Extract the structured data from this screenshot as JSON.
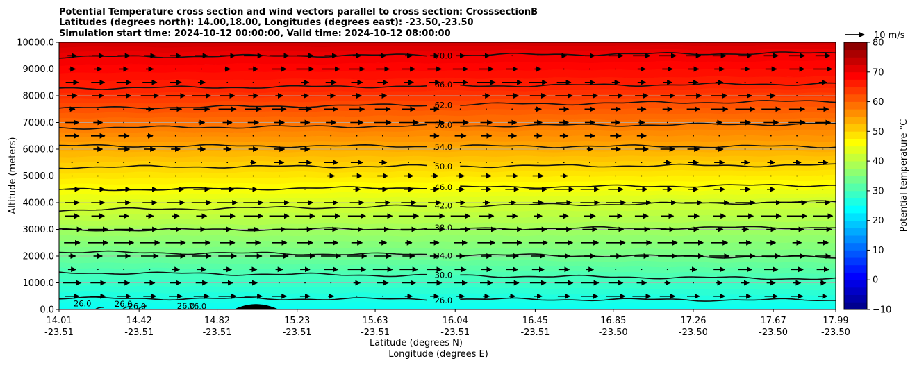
{
  "chart_data": {
    "type": "contour",
    "title_lines": [
      "Potential Temperature cross section and wind vectors parallel to cross section: CrosssectionB",
      "Latitudes (degrees north): 14.00,18.00, Longitudes (degrees east): -23.50,-23.50",
      "Simulation start time: 2024-10-12 00:00:00, Valid time: 2024-10-12 08:00:00"
    ],
    "xlabel_lines": [
      "Latitude (degrees N)",
      "Longitude (degrees E)"
    ],
    "ylabel": "Altitude (meters)",
    "x_ticks_lat": [
      "14.01",
      "14.42",
      "14.82",
      "15.23",
      "15.63",
      "16.04",
      "16.45",
      "16.85",
      "17.26",
      "17.67",
      "17.99"
    ],
    "x_ticks_lon": [
      "-23.51",
      "-23.51",
      "-23.51",
      "-23.51",
      "-23.51",
      "-23.51",
      "-23.51",
      "-23.50",
      "-23.50",
      "-23.50",
      "-23.50"
    ],
    "x_range": [
      14.01,
      17.99
    ],
    "y_ticks": [
      "0.0",
      "1000.0",
      "2000.0",
      "3000.0",
      "4000.0",
      "5000.0",
      "6000.0",
      "7000.0",
      "8000.0",
      "9000.0",
      "10000.0"
    ],
    "ylim": [
      0,
      10000
    ],
    "grid": "horizontal",
    "colorbar": {
      "label": "Potential temperature $^\\circ$C",
      "ticks": [
        "−10",
        "0",
        "10",
        "20",
        "30",
        "40",
        "50",
        "60",
        "70",
        "80"
      ],
      "range": [
        -10,
        80
      ],
      "step": 2.5,
      "colormap": "jet"
    },
    "wind_key_label": "10 m/s",
    "contours": [
      {
        "value": 26,
        "label": "26.0",
        "alt_left": 420,
        "alt_right": 350
      },
      {
        "value": 30,
        "label": "30.0",
        "alt_left": 1380,
        "alt_right": 1150
      },
      {
        "value": 34,
        "label": "34.0",
        "alt_left": 2150,
        "alt_right": 1950
      },
      {
        "value": 38,
        "label": "38.0",
        "alt_left": 2970,
        "alt_right": 3080
      },
      {
        "value": 42,
        "label": "42.0",
        "alt_left": 3720,
        "alt_right": 4030
      },
      {
        "value": 46,
        "label": "46.0",
        "alt_left": 4480,
        "alt_right": 4660
      },
      {
        "value": 50,
        "label": "50.0",
        "alt_left": 5330,
        "alt_right": 5400
      },
      {
        "value": 54,
        "label": "54.0",
        "alt_left": 6120,
        "alt_right": 6100
      },
      {
        "value": 58,
        "label": "58.0",
        "alt_left": 6800,
        "alt_right": 6950
      },
      {
        "value": 62,
        "label": "62.0",
        "alt_left": 7530,
        "alt_right": 7800
      },
      {
        "value": 66,
        "label": "66.0",
        "alt_left": 8280,
        "alt_right": 8450
      },
      {
        "value": 70,
        "label": "70.0",
        "alt_left": 9450,
        "alt_right": 9600
      }
    ],
    "surface_labels": [
      "26.0",
      "26.0",
      "26.0",
      "26.0",
      "26.0"
    ],
    "terrain": {
      "lat_start": 14.9,
      "lat_end": 15.13,
      "peak_lat": 15.02,
      "peak_alt": 200
    }
  }
}
